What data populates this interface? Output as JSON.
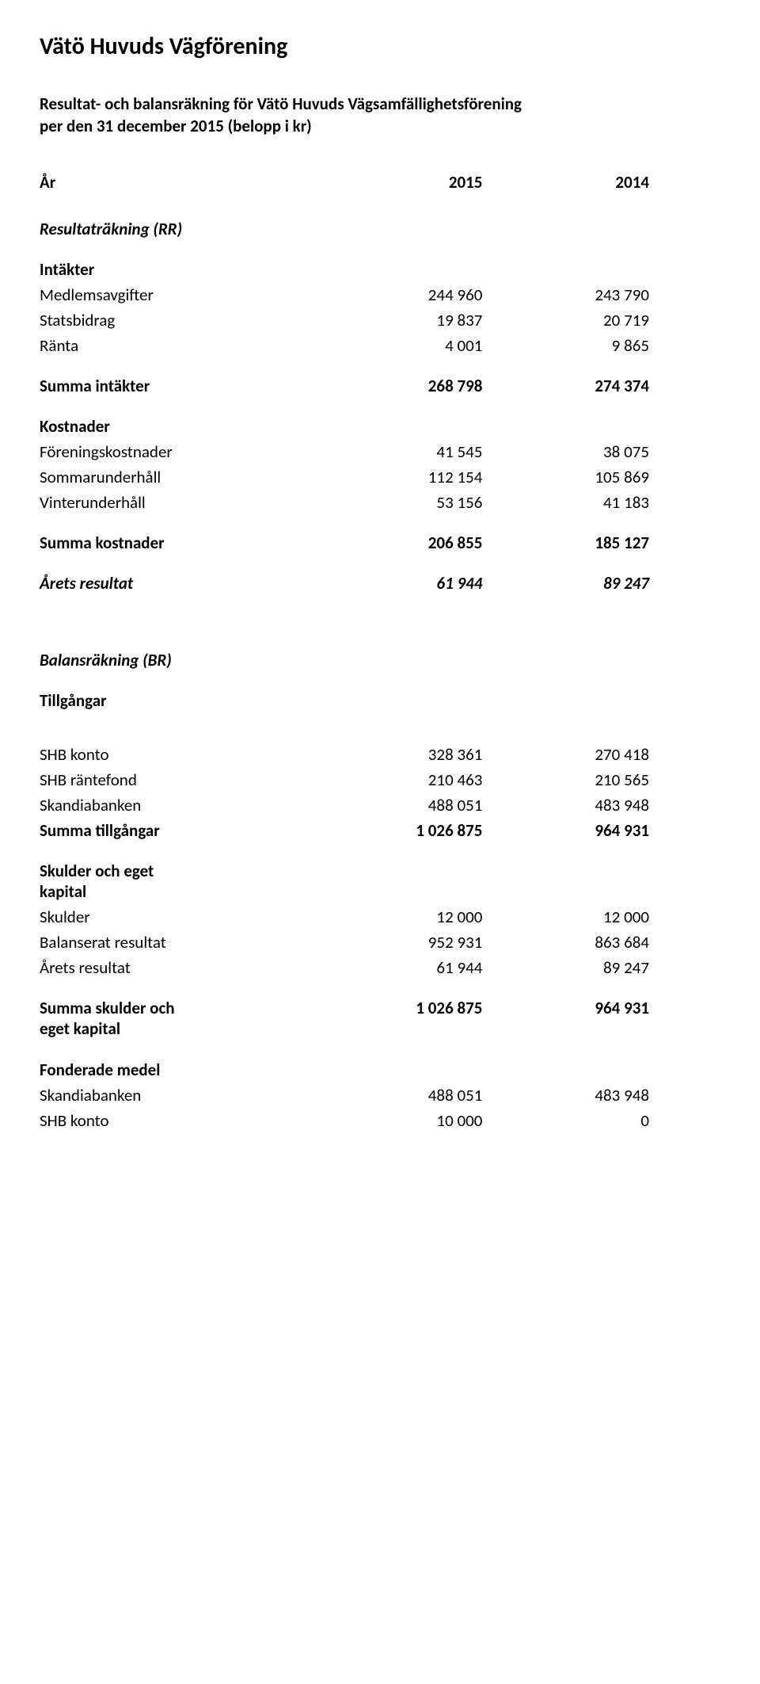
{
  "title": "Vätö Huvuds Vägförening",
  "subtitle_line1": "Resultat- och balansräkning för Vätö Huvuds Vägsamfällighetsförening",
  "subtitle_line2": "per den 31 december 2015   (belopp i kr)",
  "headers": {
    "year": "År",
    "y2015": "2015",
    "y2014": "2014"
  },
  "rr": {
    "heading": "Resultaträkning (RR)",
    "intakter_heading": "Intäkter",
    "rows_intakter": [
      {
        "label": "Medlemsavgifter",
        "v15": "244 960",
        "v14": "243 790"
      },
      {
        "label": "Statsbidrag",
        "v15": "19 837",
        "v14": "20 719"
      },
      {
        "label": "Ränta",
        "v15": "4 001",
        "v14": "9 865"
      }
    ],
    "summa_intakter": {
      "label": "Summa intäkter",
      "v15": "268 798",
      "v14": "274 374"
    },
    "kostnader_heading": "Kostnader",
    "rows_kostnader": [
      {
        "label": "Föreningskostnader",
        "v15": "41 545",
        "v14": "38 075"
      },
      {
        "label": "Sommarunderhåll",
        "v15": "112 154",
        "v14": "105 869"
      },
      {
        "label": "Vinterunderhåll",
        "v15": "53 156",
        "v14": "41 183"
      }
    ],
    "summa_kostnader": {
      "label": "Summa kostnader",
      "v15": "206 855",
      "v14": "185 127"
    },
    "arets_resultat": {
      "label": "Årets resultat",
      "v15": "61 944",
      "v14": "89 247"
    }
  },
  "br": {
    "heading": "Balansräkning (BR)",
    "tillgangar_heading": "Tillgångar",
    "rows_tillgangar": [
      {
        "label": "SHB konto",
        "v15": "328 361",
        "v14": "270 418"
      },
      {
        "label": "SHB räntefond",
        "v15": "210 463",
        "v14": "210 565"
      },
      {
        "label": "Skandiabanken",
        "v15": "488 051",
        "v14": "483 948"
      }
    ],
    "summa_tillgangar": {
      "label": "Summa tillgångar",
      "v15": "1 026 875",
      "v14": "964 931"
    },
    "skulder_heading_l1": "Skulder och eget",
    "skulder_heading_l2": "kapital",
    "rows_skulder": [
      {
        "label": "Skulder",
        "v15": "12 000",
        "v14": "12 000"
      },
      {
        "label": "Balanserat resultat",
        "v15": "952 931",
        "v14": "863 684"
      },
      {
        "label": "Årets resultat",
        "v15": "61 944",
        "v14": "89 247"
      }
    ],
    "summa_skulder_l1": "Summa skulder och",
    "summa_skulder_l2": "eget kapital",
    "summa_skulder": {
      "v15": "1 026 875",
      "v14": "964 931"
    },
    "fonderade_heading": "Fonderade medel",
    "rows_fonderade": [
      {
        "label": "Skandiabanken",
        "v15": "488 051",
        "v14": "483 948"
      },
      {
        "label": "SHB konto",
        "v15": "10 000",
        "v14": "0"
      }
    ]
  }
}
